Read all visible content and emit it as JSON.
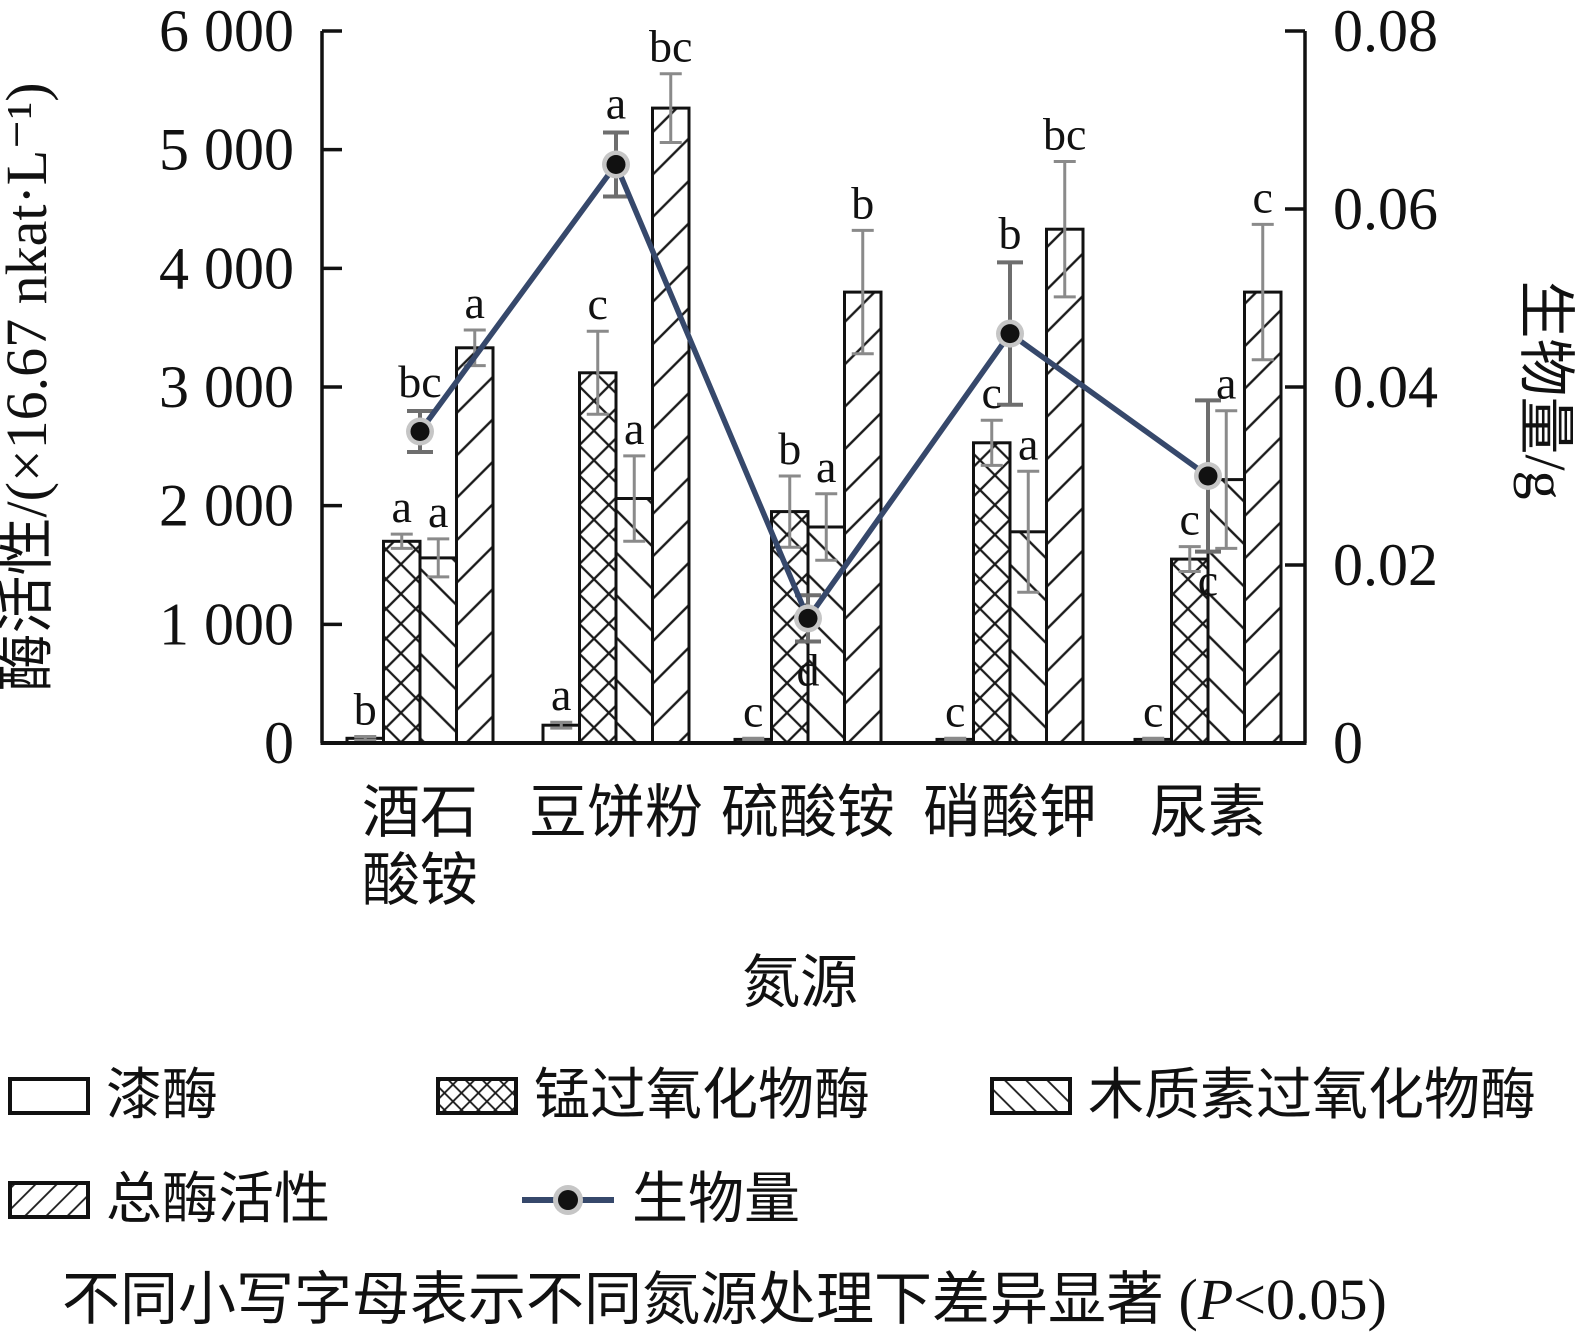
{
  "chart_data": {
    "type": "bar+line",
    "categories": [
      "酒石酸铵",
      "豆饼粉",
      "硫酸铵",
      "硝酸钾",
      "尿素"
    ],
    "category_label_lines": [
      [
        "酒石",
        "酸铵"
      ],
      [
        "豆饼粉"
      ],
      [
        "硫酸铵"
      ],
      [
        "硝酸钾"
      ],
      [
        "尿素"
      ]
    ],
    "xlabel": "氮源",
    "left_axis": {
      "title": "酶活性/(×16.67 nkat·L⁻¹)",
      "min": 0,
      "max": 6000,
      "step": 1000,
      "tick_labels": [
        "0",
        "1 000",
        "2 000",
        "3 000",
        "4 000",
        "5 000",
        "6 000"
      ]
    },
    "right_axis": {
      "title": "生物量/g",
      "min": 0,
      "max": 0.08,
      "step": 0.02,
      "tick_labels": [
        "0",
        "0.02",
        "0.04",
        "0.06",
        "0.08"
      ]
    },
    "bar_series": [
      {
        "name": "漆酶",
        "pattern": "plain",
        "values": [
          40,
          150,
          30,
          30,
          30
        ],
        "errors": [
          15,
          25,
          10,
          10,
          10
        ],
        "letters": [
          "b",
          "a",
          "c",
          "c",
          "c"
        ]
      },
      {
        "name": "锰过氧化物酶",
        "pattern": "crosshatch",
        "values": [
          1700,
          3120,
          1950,
          2530,
          1550
        ],
        "errors": [
          60,
          350,
          300,
          190,
          105
        ],
        "letters": [
          "a",
          "c",
          "b",
          "c",
          "c"
        ]
      },
      {
        "name": "木质素过氧化物酶",
        "pattern": "backslash",
        "values": [
          1560,
          2060,
          1820,
          1780,
          2220
        ],
        "errors": [
          160,
          360,
          280,
          510,
          580
        ],
        "letters": [
          "a",
          "a",
          "a",
          "a",
          "a"
        ]
      },
      {
        "name": "总酶活性",
        "pattern": "forwardslash",
        "values": [
          3330,
          5350,
          3800,
          4330,
          3800
        ],
        "errors": [
          150,
          290,
          520,
          570,
          570
        ],
        "letters": [
          "a",
          "bc",
          "b",
          "bc",
          "c"
        ]
      }
    ],
    "line_series": {
      "name": "生物量",
      "axis": "right",
      "color": "#36486b",
      "values": [
        0.035,
        0.065,
        0.014,
        0.046,
        0.03
      ],
      "errors": [
        0.0023,
        0.0036,
        0.0026,
        0.008,
        0.0085
      ],
      "letters": [
        "bc",
        "a",
        "d",
        "b",
        "c"
      ],
      "letter_positions": [
        "above",
        "above",
        "below",
        "above",
        "below"
      ]
    },
    "grid": "off",
    "legend_position": "bottom"
  },
  "legend": {
    "rows": [
      [
        {
          "label": "漆酶",
          "swatch": "plain"
        },
        {
          "label": "锰过氧化物酶",
          "swatch": "crosshatch"
        },
        {
          "label": "木质素过氧化物酶",
          "swatch": "backslash"
        }
      ],
      [
        {
          "label": "总酶活性",
          "swatch": "forwardslash"
        },
        {
          "label": "生物量",
          "swatch": "line-dot"
        }
      ]
    ]
  },
  "footnote": {
    "prefix": "不同小写字母表示不同氮源处理下差异显著 (",
    "p_symbol": "P",
    "suffix": "<0.05)"
  },
  "colors": {
    "line": "#36486b",
    "bar_stroke": "#111111",
    "error_bar": "#8a8a8a",
    "biomass_error_bar": "#6e6e6e",
    "dot_fill": "#111111",
    "dot_ring": "#c6c6c6"
  }
}
